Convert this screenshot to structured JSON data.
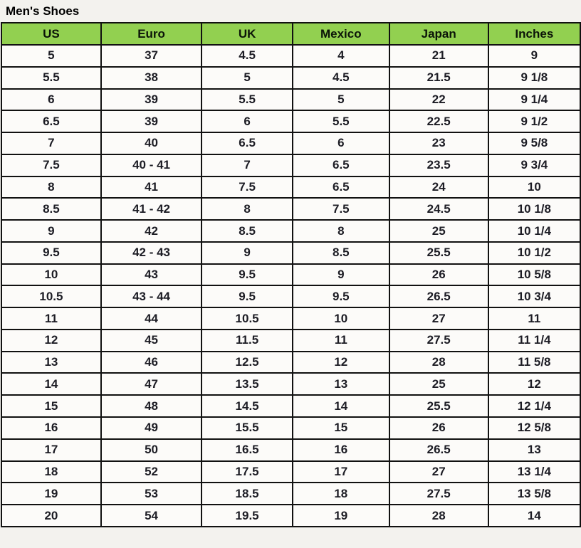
{
  "page": {
    "title": "Men's Shoes"
  },
  "colors": {
    "page_bg": "#f3f2ee",
    "cell_bg": "#fcfbf9",
    "header_bg": "#92d050",
    "border": "#111111",
    "text": "#1c1c24"
  },
  "chart_data": {
    "type": "table",
    "title": "Men's Shoes",
    "columns": [
      "US",
      "Euro",
      "UK",
      "Mexico",
      "Japan",
      "Inches"
    ],
    "rows": [
      [
        "5",
        "37",
        "4.5",
        "4",
        "21",
        "9"
      ],
      [
        "5.5",
        "38",
        "5",
        "4.5",
        "21.5",
        "9 1/8"
      ],
      [
        "6",
        "39",
        "5.5",
        "5",
        "22",
        "9 1/4"
      ],
      [
        "6.5",
        "39",
        "6",
        "5.5",
        "22.5",
        "9 1/2"
      ],
      [
        "7",
        "40",
        "6.5",
        "6",
        "23",
        "9 5/8"
      ],
      [
        "7.5",
        "40 - 41",
        "7",
        "6.5",
        "23.5",
        "9 3/4"
      ],
      [
        "8",
        "41",
        "7.5",
        "6.5",
        "24",
        "10"
      ],
      [
        "8.5",
        "41 - 42",
        "8",
        "7.5",
        "24.5",
        "10 1/8"
      ],
      [
        "9",
        "42",
        "8.5",
        "8",
        "25",
        "10 1/4"
      ],
      [
        "9.5",
        "42 - 43",
        "9",
        "8.5",
        "25.5",
        "10 1/2"
      ],
      [
        "10",
        "43",
        "9.5",
        "9",
        "26",
        "10 5/8"
      ],
      [
        "10.5",
        "43 - 44",
        "9.5",
        "9.5",
        "26.5",
        "10 3/4"
      ],
      [
        "11",
        "44",
        "10.5",
        "10",
        "27",
        "11"
      ],
      [
        "12",
        "45",
        "11.5",
        "11",
        "27.5",
        "11 1/4"
      ],
      [
        "13",
        "46",
        "12.5",
        "12",
        "28",
        "11 5/8"
      ],
      [
        "14",
        "47",
        "13.5",
        "13",
        "25",
        "12"
      ],
      [
        "15",
        "48",
        "14.5",
        "14",
        "25.5",
        "12 1/4"
      ],
      [
        "16",
        "49",
        "15.5",
        "15",
        "26",
        "12 5/8"
      ],
      [
        "17",
        "50",
        "16.5",
        "16",
        "26.5",
        "13"
      ],
      [
        "18",
        "52",
        "17.5",
        "17",
        "27",
        "13 1/4"
      ],
      [
        "19",
        "53",
        "18.5",
        "18",
        "27.5",
        "13 5/8"
      ],
      [
        "20",
        "54",
        "19.5",
        "19",
        "28",
        "14"
      ]
    ]
  }
}
